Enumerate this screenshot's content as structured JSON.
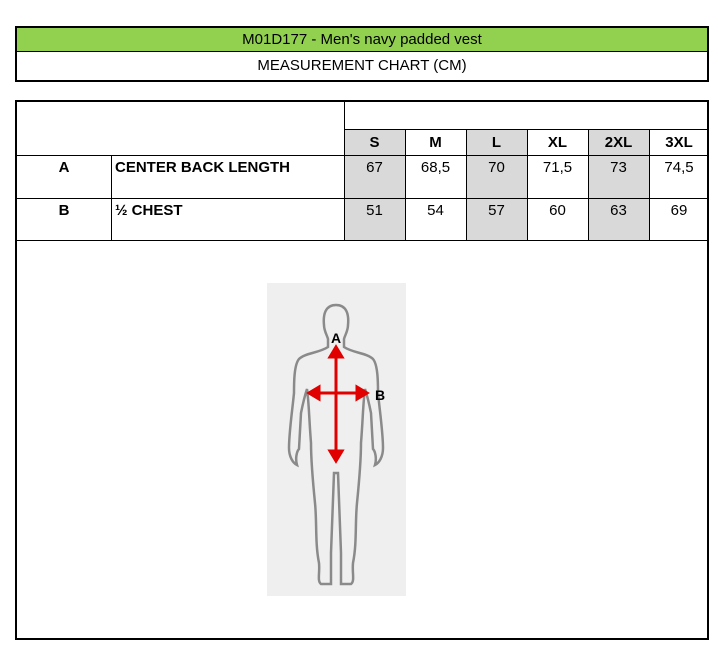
{
  "header": {
    "title": "M01D177 - Men's navy padded vest",
    "subtitle": "MEASUREMENT CHART (CM)",
    "accent_color": "#92d050"
  },
  "table": {
    "sizes": [
      "S",
      "M",
      "L",
      "XL",
      "2XL",
      "3XL"
    ],
    "rows": [
      {
        "code": "A",
        "label": "CENTER BACK LENGTH",
        "values": [
          "67",
          "68,5",
          "70",
          "71,5",
          "73",
          "74,5"
        ]
      },
      {
        "code": "B",
        "label": "½ CHEST",
        "values": [
          "51",
          "54",
          "57",
          "60",
          "63",
          "69"
        ]
      }
    ],
    "shaded_color": "#d9d9d9"
  },
  "figure": {
    "label_a": "A",
    "label_b": "B",
    "arrow_color": "#e00000"
  }
}
